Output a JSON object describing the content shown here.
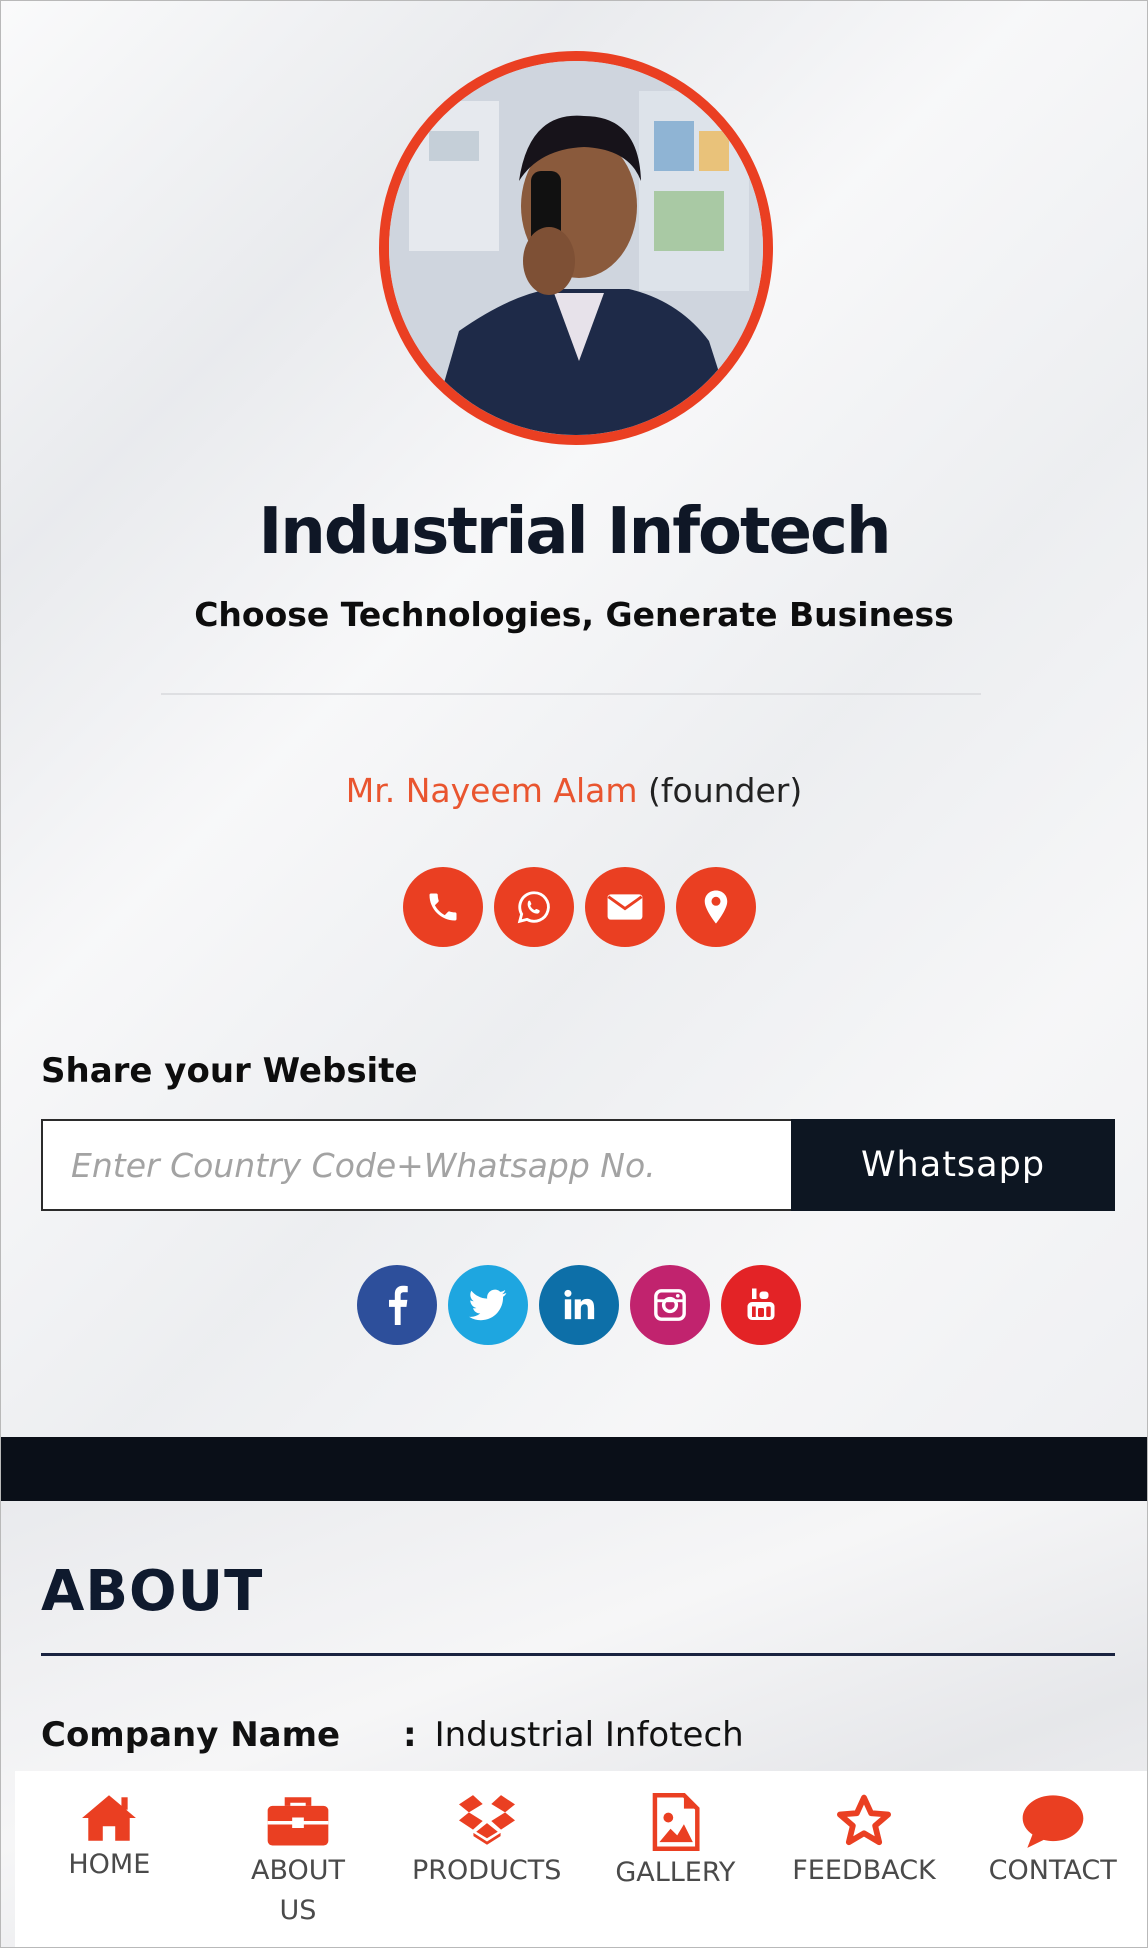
{
  "header": {
    "company_name": "Industrial Infotech",
    "tagline": "Choose Technologies, Generate Business"
  },
  "person": {
    "name": "Mr. Nayeem Alam",
    "role": "(founder)"
  },
  "contact_actions": [
    {
      "icon": "phone-icon"
    },
    {
      "icon": "whatsapp-icon"
    },
    {
      "icon": "email-icon"
    },
    {
      "icon": "location-icon"
    }
  ],
  "share": {
    "label": "Share your Website",
    "input_placeholder": "Enter Country Code+Whatsapp No.",
    "input_value": "",
    "button_label": "Whatsapp"
  },
  "social": [
    {
      "icon": "facebook-icon",
      "color": "#2d4f9b"
    },
    {
      "icon": "twitter-icon",
      "color": "#1ea6e0"
    },
    {
      "icon": "linkedin-icon",
      "color": "#0d6fa8"
    },
    {
      "icon": "instagram-icon",
      "color": "#c1236e"
    },
    {
      "icon": "youtube-icon",
      "color": "#e32326"
    }
  ],
  "about": {
    "title": "ABOUT",
    "rows": [
      {
        "key": "Company Name",
        "sep": ":",
        "value": "Industrial Infotech"
      }
    ]
  },
  "nav": [
    {
      "label": "HOME",
      "icon": "home-icon"
    },
    {
      "label": "ABOUT\nUS",
      "icon": "briefcase-icon"
    },
    {
      "label": "PRODUCTS",
      "icon": "dropbox-icon"
    },
    {
      "label": "GALLERY",
      "icon": "image-icon"
    },
    {
      "label": "FEEDBACK",
      "icon": "star-icon"
    },
    {
      "label": "CONTACT",
      "icon": "chat-bubble-icon"
    }
  ],
  "colors": {
    "accent": "#ea3f22",
    "dark": "#0d1622",
    "name_color": "#e9552f"
  }
}
